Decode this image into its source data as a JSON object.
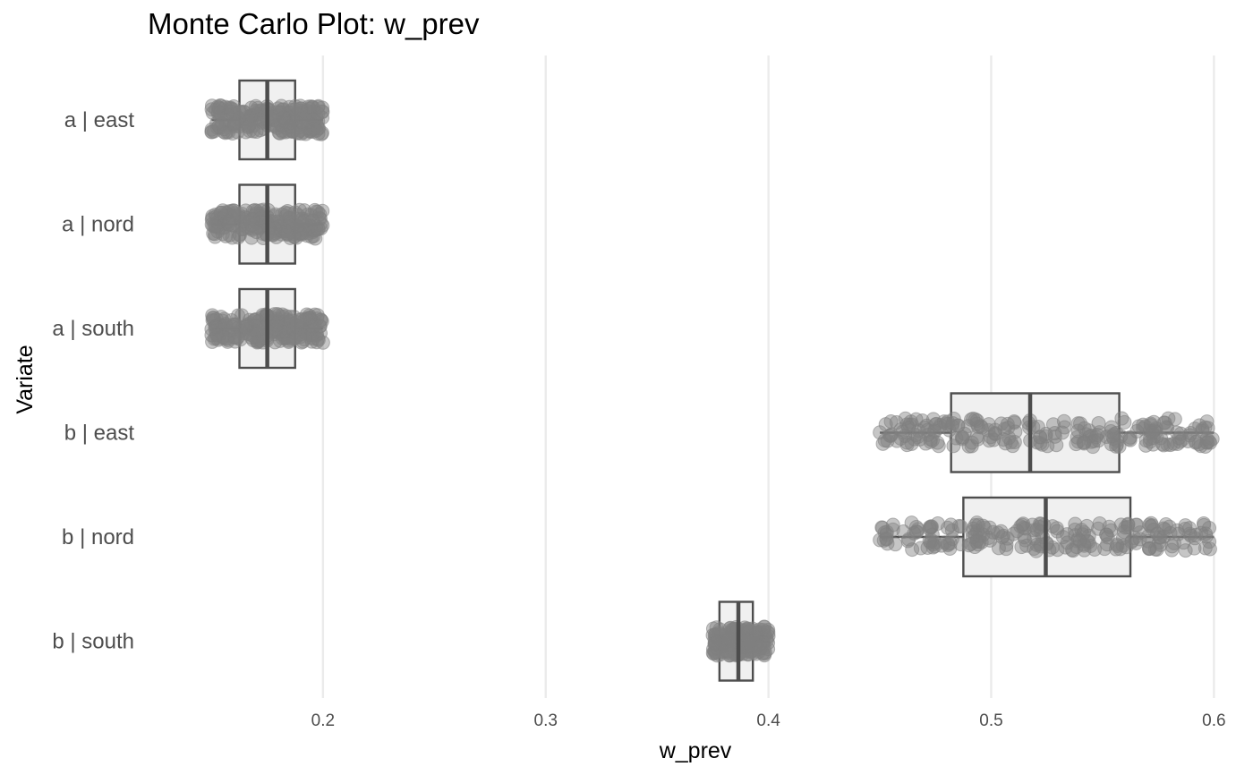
{
  "chart_data": {
    "type": "boxplot",
    "title": "Monte Carlo Plot: w_prev",
    "xlabel": "w_prev",
    "ylabel": "Variate",
    "xlim": [
      0.1213,
      0.6095
    ],
    "x_ticks": [
      "0.2",
      "0.3",
      "0.4",
      "0.5",
      "0.6"
    ],
    "grid": "vertical major only",
    "legend": "none",
    "colors": {
      "points": "#808080",
      "box_fill": "#f0f0f0",
      "box_stroke": "#4d4d4d",
      "grid": "#ebebeb"
    },
    "series": [
      {
        "label": "a | east",
        "min": 0.15,
        "q1": 0.1625,
        "median": 0.175,
        "q3": 0.1875,
        "max": 0.2
      },
      {
        "label": "a | nord",
        "min": 0.15,
        "q1": 0.1625,
        "median": 0.175,
        "q3": 0.1875,
        "max": 0.2
      },
      {
        "label": "a | south",
        "min": 0.15,
        "q1": 0.1625,
        "median": 0.175,
        "q3": 0.1875,
        "max": 0.2
      },
      {
        "label": "b | east",
        "min": 0.45,
        "q1": 0.482,
        "median": 0.5175,
        "q3": 0.5575,
        "max": 0.6
      },
      {
        "label": "b | nord",
        "min": 0.45,
        "q1": 0.4875,
        "median": 0.5245,
        "q3": 0.5625,
        "max": 0.6
      },
      {
        "label": "b | south",
        "min": 0.375,
        "q1": 0.378,
        "median": 0.3865,
        "q3": 0.393,
        "max": 0.4
      }
    ]
  }
}
